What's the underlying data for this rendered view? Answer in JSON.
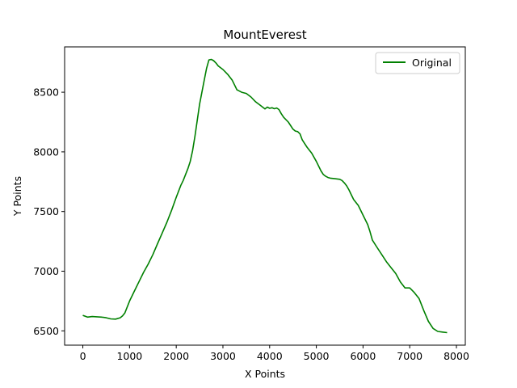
{
  "chart_data": {
    "type": "line",
    "title": "MountEverest",
    "xlabel": "X Points",
    "ylabel": "Y Points",
    "xlim": [
      -390,
      8190
    ],
    "ylim": [
      6380,
      8880
    ],
    "x_ticks": [
      0,
      1000,
      2000,
      3000,
      4000,
      5000,
      6000,
      7000,
      8000
    ],
    "x_tick_labels": [
      "0",
      "1000",
      "2000",
      "3000",
      "4000",
      "5000",
      "6000",
      "7000",
      "8000"
    ],
    "y_ticks": [
      6500,
      7000,
      7500,
      8000,
      8500
    ],
    "y_tick_labels": [
      "6500",
      "7000",
      "7500",
      "8000",
      "8500"
    ],
    "grid": false,
    "legend_position": "top-right",
    "series": [
      {
        "name": "Original",
        "color": "#008000",
        "x": [
          0,
          100,
          200,
          300,
          400,
          500,
          600,
          700,
          800,
          850,
          900,
          1000,
          1100,
          1200,
          1300,
          1400,
          1500,
          1600,
          1700,
          1800,
          1900,
          2000,
          2100,
          2150,
          2200,
          2250,
          2300,
          2350,
          2400,
          2500,
          2600,
          2650,
          2700,
          2750,
          2800,
          2850,
          2900,
          3000,
          3100,
          3200,
          3250,
          3300,
          3400,
          3500,
          3600,
          3700,
          3800,
          3900,
          3950,
          4000,
          4050,
          4100,
          4150,
          4200,
          4250,
          4300,
          4400,
          4500,
          4550,
          4600,
          4650,
          4700,
          4750,
          4800,
          4900,
          5000,
          5100,
          5150,
          5200,
          5250,
          5300,
          5400,
          5500,
          5550,
          5600,
          5650,
          5700,
          5750,
          5800,
          5900,
          6000,
          6100,
          6150,
          6200,
          6300,
          6400,
          6500,
          6600,
          6700,
          6800,
          6900,
          7000,
          7050,
          7100,
          7200,
          7250,
          7300,
          7400,
          7500,
          7600,
          7700,
          7800
        ],
        "values": [
          6630,
          6615,
          6620,
          6618,
          6615,
          6610,
          6600,
          6598,
          6610,
          6625,
          6650,
          6750,
          6830,
          6910,
          6990,
          7060,
          7140,
          7230,
          7320,
          7410,
          7510,
          7620,
          7720,
          7760,
          7810,
          7860,
          7920,
          8010,
          8130,
          8400,
          8600,
          8700,
          8770,
          8775,
          8765,
          8745,
          8720,
          8690,
          8650,
          8600,
          8560,
          8520,
          8500,
          8490,
          8460,
          8420,
          8390,
          8360,
          8375,
          8365,
          8370,
          8362,
          8368,
          8355,
          8320,
          8290,
          8250,
          8190,
          8175,
          8170,
          8150,
          8100,
          8070,
          8040,
          7990,
          7920,
          7840,
          7810,
          7795,
          7785,
          7780,
          7775,
          7770,
          7760,
          7740,
          7715,
          7680,
          7640,
          7600,
          7550,
          7470,
          7390,
          7330,
          7260,
          7200,
          7140,
          7080,
          7030,
          6980,
          6910,
          6860,
          6860,
          6840,
          6820,
          6770,
          6720,
          6670,
          6580,
          6520,
          6495,
          6490,
          6485
        ]
      }
    ]
  }
}
